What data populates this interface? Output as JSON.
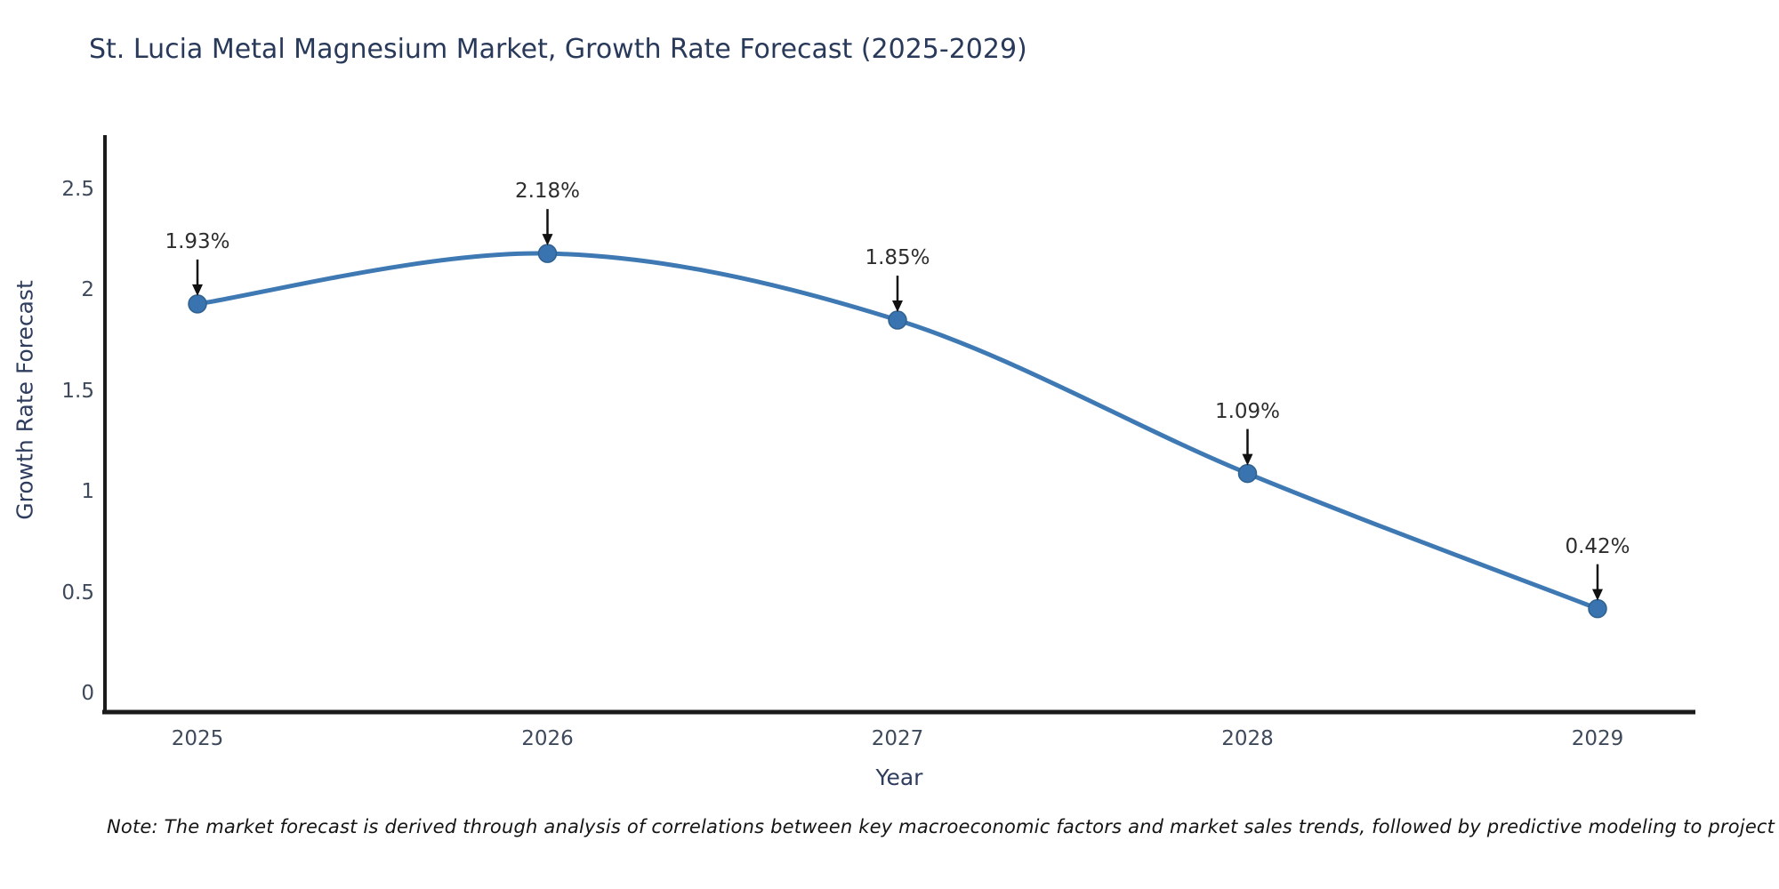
{
  "title": "St. Lucia Metal Magnesium Market, Growth Rate Forecast (2025-2029)",
  "note": "Note: The market forecast is derived through analysis of correlations between key macroeconomic factors and market sales trends, followed by predictive modeling to project future sales",
  "colors": {
    "line": "#3e79b4",
    "marker_fill": "#3a74b0",
    "marker_stroke": "#2f618f",
    "axis": "#1b1b1b",
    "arrow": "#111111",
    "title_text": "#28395a",
    "axis_title_text": "#2e3c5e",
    "tick_text": "#3e4a5c",
    "point_label_text": "#2d2d2d",
    "background": "#ffffff"
  },
  "chart_data": {
    "type": "line",
    "title": "St. Lucia Metal Magnesium Market, Growth Rate Forecast (2025-2029)",
    "xlabel": "Year",
    "ylabel": "Growth Rate Forecast",
    "x": [
      2025,
      2026,
      2027,
      2028,
      2029
    ],
    "xtick_labels": [
      "2025",
      "2026",
      "2027",
      "2028",
      "2029"
    ],
    "series": [
      {
        "name": "Growth Rate Forecast",
        "values": [
          1.93,
          2.18,
          1.85,
          1.09,
          0.42
        ],
        "point_labels": [
          "1.93%",
          "2.18%",
          "1.85%",
          "1.09%",
          "0.42%"
        ]
      }
    ],
    "ylim": [
      0,
      2.5
    ],
    "yticks": [
      0,
      0.5,
      1,
      1.5,
      2,
      2.5
    ],
    "ytick_labels": [
      "0",
      "0.5",
      "1",
      "1.5",
      "2",
      "2.5"
    ],
    "grid": false,
    "legend": "none",
    "curve": "spline",
    "annotations": "value labels with black down-arrows above each point"
  }
}
